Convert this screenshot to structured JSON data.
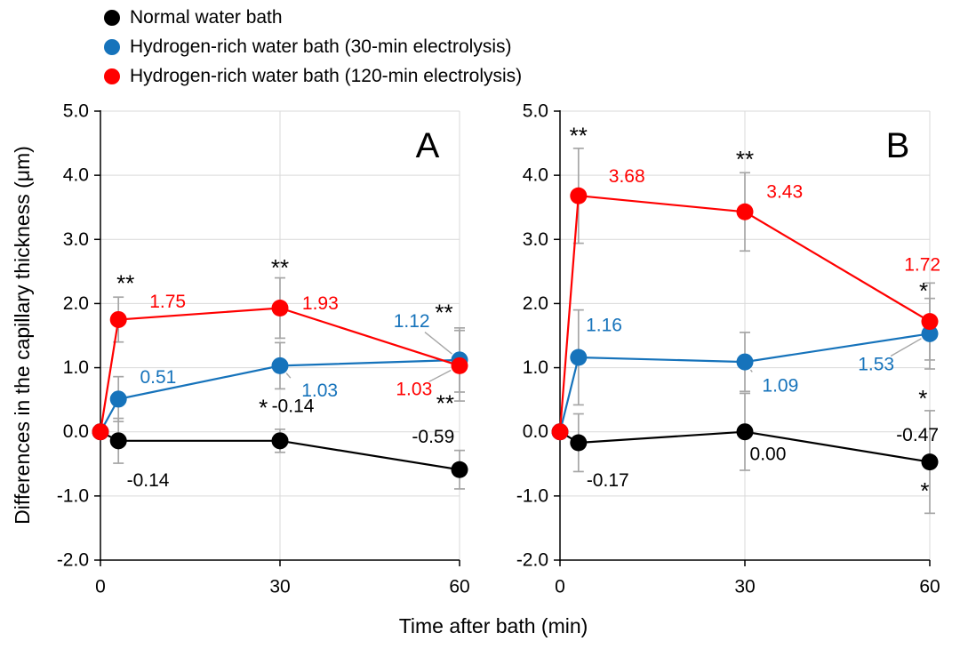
{
  "axes": {
    "ylabel": "Differences in the capillary thickness (μm)",
    "xlabel": "Time after bath (min)"
  },
  "legend": {
    "items": [
      {
        "label": "Normal water bath",
        "color": "#000000"
      },
      {
        "label": "Hydrogen-rich water bath (30-min electrolysis)",
        "color": "#1673bb"
      },
      {
        "label": "Hydrogen-rich water bath (120-min electrolysis)",
        "color": "#ff0000"
      }
    ]
  },
  "style": {
    "grid_color": "#d9d9d9",
    "axis_color": "#000000",
    "error_bar_color": "#a6a6a6"
  },
  "chart_data": [
    {
      "type": "line",
      "panel_label": "A",
      "x": [
        0,
        3,
        30,
        60
      ],
      "xticks": [
        0,
        30,
        60
      ],
      "xlim": [
        0,
        60
      ],
      "ylim": [
        -2,
        5
      ],
      "yticks": [
        -2,
        -1,
        0,
        1,
        2,
        3,
        4,
        5
      ],
      "series": [
        {
          "name": "Normal water bath",
          "color": "#000000",
          "values": [
            0,
            -0.14,
            -0.14,
            -0.59
          ],
          "errors": [
            0,
            0.35,
            0.18,
            0.3
          ]
        },
        {
          "name": "Hydrogen-rich water bath (30-min electrolysis)",
          "color": "#1673bb",
          "values": [
            0,
            0.51,
            1.03,
            1.12
          ],
          "errors": [
            0,
            0.35,
            0.36,
            0.5
          ]
        },
        {
          "name": "Hydrogen-rich water bath (120-min electrolysis)",
          "color": "#ff0000",
          "values": [
            0,
            1.75,
            1.93,
            1.03
          ],
          "errors": [
            0,
            0.35,
            0.47,
            0.55
          ]
        }
      ],
      "annotations": [
        {
          "text": "**",
          "x": 4.2,
          "y": 2.32,
          "anchor": "middle",
          "size": 26,
          "color": "#000000"
        },
        {
          "text": "1.75",
          "x": 8.2,
          "y": 2.03,
          "anchor": "start",
          "color": "#ff0000"
        },
        {
          "text": "0.51",
          "x": 6.6,
          "y": 0.85,
          "anchor": "start",
          "color": "#1673bb"
        },
        {
          "text": "-0.14",
          "x": 4.4,
          "y": -0.76,
          "anchor": "start",
          "color": "#000000",
          "leader": [
            3,
            -0.5
          ]
        },
        {
          "text": "**",
          "x": 30,
          "y": 2.56,
          "anchor": "middle",
          "size": 26,
          "color": "#000000"
        },
        {
          "text": "1.93",
          "x": 33.7,
          "y": 2.0,
          "anchor": "start",
          "color": "#ff0000"
        },
        {
          "text": "1.03",
          "x": 33.6,
          "y": 0.64,
          "anchor": "start",
          "color": "#1673bb",
          "leader": [
            30,
            1.03
          ]
        },
        {
          "text": "*",
          "x": 27.2,
          "y": 0.38,
          "anchor": "middle",
          "size": 26,
          "color": "#000000"
        },
        {
          "text": "-0.14",
          "x": 28.6,
          "y": 0.4,
          "anchor": "start",
          "color": "#000000"
        },
        {
          "text": "1.12",
          "x": 52,
          "y": 1.72,
          "anchor": "middle",
          "color": "#1673bb",
          "leader": [
            60,
            1.12
          ]
        },
        {
          "text": "**",
          "x": 57.4,
          "y": 1.86,
          "anchor": "middle",
          "size": 26,
          "color": "#000000"
        },
        {
          "text": "1.03",
          "x": 52.4,
          "y": 0.66,
          "anchor": "middle",
          "color": "#ff0000",
          "leader": [
            60,
            1.03
          ]
        },
        {
          "text": "**",
          "x": 57.6,
          "y": 0.45,
          "anchor": "middle",
          "size": 26,
          "color": "#000000"
        },
        {
          "text": "-0.59",
          "x": 55.6,
          "y": -0.08,
          "anchor": "middle",
          "color": "#000000"
        }
      ]
    },
    {
      "type": "line",
      "panel_label": "B",
      "x": [
        0,
        3,
        30,
        60
      ],
      "xticks": [
        0,
        30,
        60
      ],
      "xlim": [
        0,
        60
      ],
      "ylim": [
        -2,
        5
      ],
      "yticks": [
        -2,
        -1,
        0,
        1,
        2,
        3,
        4,
        5
      ],
      "series": [
        {
          "name": "Normal water bath",
          "color": "#000000",
          "values": [
            0,
            -0.17,
            0.0,
            -0.47
          ],
          "errors": [
            0,
            0.45,
            0.6,
            0.8
          ]
        },
        {
          "name": "Hydrogen-rich water bath (30-min electrolysis)",
          "color": "#1673bb",
          "values": [
            0,
            1.16,
            1.09,
            1.53
          ],
          "errors": [
            0,
            0.74,
            0.46,
            0.55
          ]
        },
        {
          "name": "Hydrogen-rich water bath (120-min electrolysis)",
          "color": "#ff0000",
          "values": [
            0,
            3.68,
            3.43,
            1.72
          ],
          "errors": [
            0,
            0.74,
            0.61,
            0.6
          ]
        }
      ],
      "annotations": [
        {
          "text": "**",
          "x": 3,
          "y": 4.62,
          "anchor": "middle",
          "size": 26,
          "color": "#000000"
        },
        {
          "text": "3.68",
          "x": 7.9,
          "y": 3.98,
          "anchor": "start",
          "color": "#ff0000"
        },
        {
          "text": "1.16",
          "x": 4.2,
          "y": 1.66,
          "anchor": "start",
          "color": "#1673bb"
        },
        {
          "text": "-0.17",
          "x": 4.3,
          "y": -0.76,
          "anchor": "start",
          "color": "#000000",
          "leader": [
            3,
            -0.62
          ]
        },
        {
          "text": "**",
          "x": 30,
          "y": 4.25,
          "anchor": "middle",
          "size": 26,
          "color": "#000000"
        },
        {
          "text": "3.43",
          "x": 33.5,
          "y": 3.74,
          "anchor": "start",
          "color": "#ff0000"
        },
        {
          "text": "1.09",
          "x": 32.8,
          "y": 0.72,
          "anchor": "start",
          "color": "#1673bb",
          "leader": [
            30,
            1.09
          ]
        },
        {
          "text": "0.00",
          "x": 30.8,
          "y": -0.35,
          "anchor": "start",
          "color": "#000000"
        },
        {
          "text": "1.72",
          "x": 58.8,
          "y": 2.6,
          "anchor": "middle",
          "color": "#ff0000"
        },
        {
          "text": "*",
          "x": 59,
          "y": 2.2,
          "anchor": "middle",
          "size": 26,
          "color": "#000000"
        },
        {
          "text": "1.53",
          "x": 51.3,
          "y": 1.05,
          "anchor": "middle",
          "color": "#1673bb",
          "leader": [
            60,
            1.53
          ]
        },
        {
          "text": "*",
          "x": 58.9,
          "y": 0.52,
          "anchor": "middle",
          "size": 26,
          "color": "#000000"
        },
        {
          "text": "-0.47",
          "x": 58,
          "y": -0.05,
          "anchor": "middle",
          "color": "#000000"
        },
        {
          "text": "*",
          "x": 59.2,
          "y": -0.92,
          "anchor": "middle",
          "size": 26,
          "color": "#000000"
        }
      ]
    }
  ]
}
